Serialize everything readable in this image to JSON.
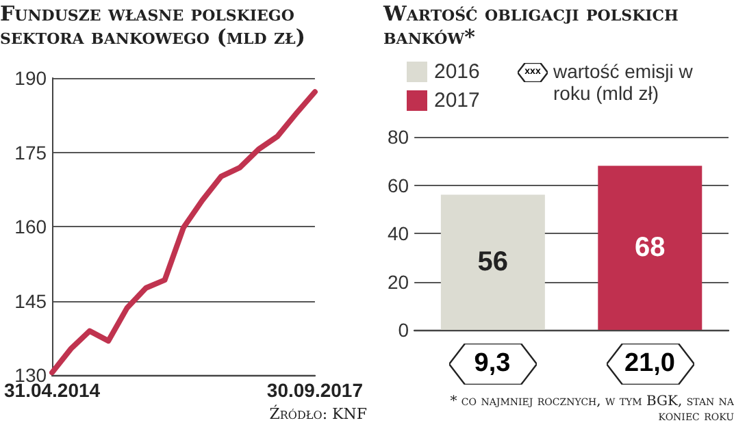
{
  "chart_data": [
    {
      "type": "line",
      "title": "Fundusze własne polskiego sektora bankowego (mld zł)",
      "categories": [
        "31.04.2014",
        null,
        null,
        null,
        null,
        null,
        null,
        null,
        null,
        null,
        null,
        null,
        null,
        null,
        "30.09.2017"
      ],
      "series": [
        {
          "color": "#c0334f",
          "values": [
            130.5,
            135.3,
            138.9,
            136.9,
            143.6,
            147.6,
            149.2,
            159.8,
            165.3,
            170.1,
            171.9,
            175.6,
            178.2,
            182.8,
            187.2
          ]
        }
      ],
      "ylim": [
        130,
        190
      ],
      "yticks": [
        130,
        145,
        160,
        175,
        190
      ],
      "grid": "y",
      "marker": "none",
      "line_style": "solid",
      "annotations": [
        "Źródło: KNF"
      ]
    },
    {
      "type": "bar",
      "title": "Wartość obligacji polskich banków*",
      "categories": [
        null,
        null
      ],
      "stacked": true,
      "series": [
        {
          "name": "2016",
          "color": "#dcdcd2",
          "values": [
            56,
            null
          ]
        },
        {
          "name": "2017",
          "color": "#c0304f",
          "values": [
            null,
            68
          ]
        }
      ],
      "ylim": [
        0,
        80
      ],
      "yticks": [
        0,
        20,
        40,
        60,
        80
      ],
      "grid": "y",
      "legend": "top left",
      "data_labels": true,
      "annotations": [
        "xxx",
        "wartość emisji w roku (mld zł)",
        "9,3",
        "21,0",
        "* co najmniej rocznych, w tym BGK, stan na koniec roku"
      ]
    }
  ]
}
